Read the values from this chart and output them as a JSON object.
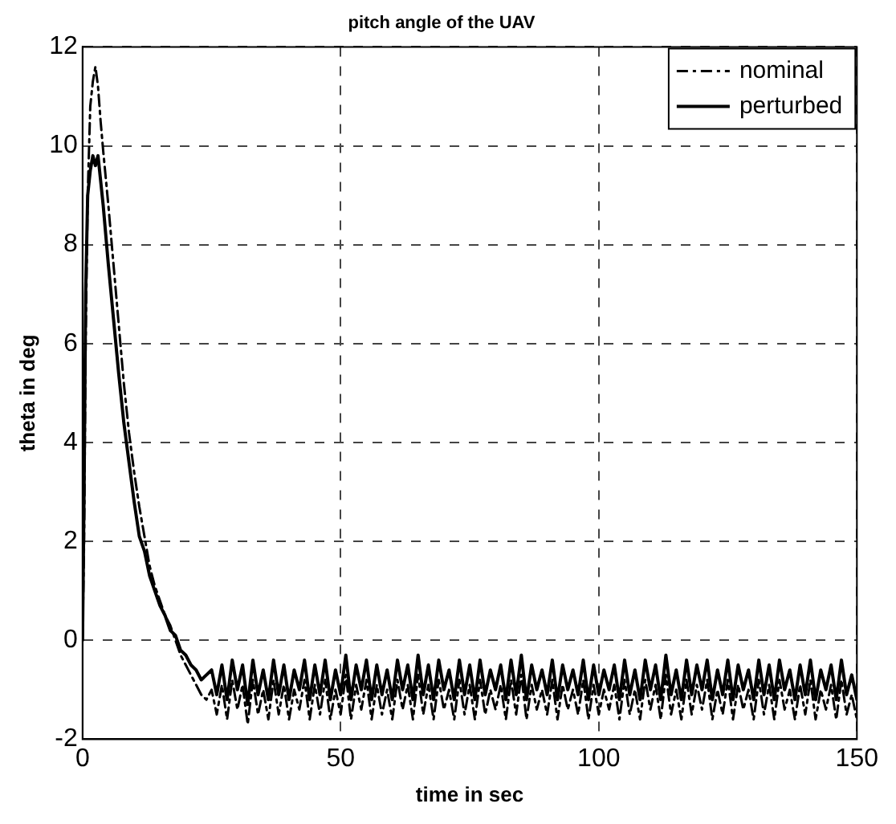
{
  "chart_data": {
    "type": "line",
    "title": "pitch angle of the UAV",
    "xlabel": "time in sec",
    "ylabel": "theta in deg",
    "x": [
      0,
      0.3,
      0.6,
      1,
      1.5,
      2,
      2.5,
      3,
      3.5,
      4,
      5,
      6,
      7,
      8,
      9,
      10,
      11,
      12,
      13,
      14,
      15,
      16,
      17,
      18,
      19,
      20,
      21,
      22,
      23,
      24,
      25,
      26,
      27,
      28,
      29,
      30,
      31,
      32,
      33,
      34,
      35,
      36,
      37,
      38,
      39,
      40,
      41,
      42,
      43,
      44,
      45,
      46,
      47,
      48,
      49,
      50,
      51,
      52,
      53,
      54,
      55,
      56,
      57,
      58,
      59,
      60,
      61,
      62,
      63,
      64,
      65,
      66,
      67,
      68,
      69,
      70,
      71,
      72,
      73,
      74,
      75,
      76,
      77,
      78,
      79,
      80,
      81,
      82,
      83,
      84,
      85,
      86,
      87,
      88,
      89,
      90,
      91,
      92,
      93,
      94,
      95,
      96,
      97,
      98,
      99,
      100,
      101,
      102,
      103,
      104,
      105,
      106,
      107,
      108,
      109,
      110,
      111,
      112,
      113,
      114,
      115,
      116,
      117,
      118,
      119,
      120,
      121,
      122,
      123,
      124,
      125,
      126,
      127,
      128,
      129,
      130,
      131,
      132,
      133,
      134,
      135,
      136,
      137,
      138,
      139,
      140,
      141,
      142,
      143,
      144,
      145,
      146,
      147,
      148,
      149,
      150
    ],
    "series": [
      {
        "name": "nominal",
        "color": "#000000",
        "line_style": "dashed",
        "values": [
          0,
          2,
          6,
          9,
          10.8,
          11.3,
          11.6,
          11.2,
          10.5,
          9.9,
          8.8,
          7.6,
          6.4,
          5.2,
          4.2,
          3.4,
          2.7,
          2.1,
          1.5,
          1.1,
          0.8,
          0.5,
          0.3,
          0,
          -0.3,
          -0.5,
          -0.7,
          -0.9,
          -1.1,
          -1.2,
          -1,
          -1.5,
          -0.9,
          -1.6,
          -0.8,
          -1.4,
          -0.9,
          -1.7,
          -0.8,
          -1.5,
          -1,
          -1.6,
          -0.8,
          -1.5,
          -0.9,
          -1.6,
          -1,
          -1.4,
          -0.8,
          -1.6,
          -0.9,
          -1.5,
          -0.8,
          -1.6,
          -1,
          -1.5,
          -0.7,
          -1.6,
          -0.9,
          -1.4,
          -0.8,
          -1.6,
          -0.9,
          -1.5,
          -1,
          -1.6,
          -0.8,
          -1.4,
          -0.9,
          -1.6,
          -0.7,
          -1.5,
          -0.9,
          -1.6,
          -0.8,
          -1.4,
          -1,
          -1.6,
          -0.8,
          -1.5,
          -0.9,
          -1.6,
          -0.8,
          -1.5,
          -1,
          -1.4,
          -0.9,
          -1.6,
          -0.8,
          -1.5,
          -0.7,
          -1.6,
          -0.9,
          -1.4,
          -1,
          -1.5,
          -0.8,
          -1.6,
          -0.9,
          -1.4,
          -1,
          -1.5,
          -0.8,
          -1.6,
          -0.9,
          -1.5,
          -1,
          -1.4,
          -0.9,
          -1.6,
          -0.8,
          -1.5,
          -1,
          -1.6,
          -0.8,
          -1.4,
          -0.9,
          -1.6,
          -0.7,
          -1.5,
          -1,
          -1.6,
          -0.8,
          -1.5,
          -0.9,
          -1.4,
          -0.8,
          -1.6,
          -1,
          -1.5,
          -0.8,
          -1.6,
          -0.9,
          -1.4,
          -1,
          -1.6,
          -0.8,
          -1.5,
          -0.9,
          -1.6,
          -0.8,
          -1.4,
          -1,
          -1.6,
          -0.9,
          -1.5,
          -0.8,
          -1.6,
          -1,
          -1.4,
          -0.9,
          -1.6,
          -0.8,
          -1.5,
          -1.1,
          -1.6
        ]
      },
      {
        "name": "perturbed",
        "color": "#000000",
        "line_style": "solid",
        "values": [
          0,
          3,
          7,
          9,
          9.5,
          9.8,
          9.6,
          9.8,
          9.3,
          8.8,
          7.6,
          6.5,
          5.4,
          4.4,
          3.6,
          2.8,
          2.1,
          1.8,
          1.3,
          1,
          0.7,
          0.5,
          0.2,
          0.1,
          -0.2,
          -0.3,
          -0.5,
          -0.6,
          -0.8,
          -0.7,
          -0.6,
          -1.1,
          -0.5,
          -1.2,
          -0.4,
          -1,
          -0.5,
          -1.3,
          -0.4,
          -1.1,
          -0.6,
          -1.2,
          -0.4,
          -1.1,
          -0.5,
          -1.2,
          -0.6,
          -1,
          -0.4,
          -1.2,
          -0.5,
          -1.1,
          -0.4,
          -1.2,
          -0.6,
          -1.1,
          -0.3,
          -1.2,
          -0.5,
          -1,
          -0.4,
          -1.2,
          -0.5,
          -1.1,
          -0.6,
          -1.2,
          -0.4,
          -1,
          -0.5,
          -1.2,
          -0.3,
          -1.1,
          -0.5,
          -1.2,
          -0.4,
          -1,
          -0.6,
          -1.2,
          -0.4,
          -1.1,
          -0.5,
          -1.2,
          -0.4,
          -1.1,
          -0.6,
          -1,
          -0.5,
          -1.2,
          -0.4,
          -1.1,
          -0.3,
          -1.2,
          -0.5,
          -1,
          -0.6,
          -1.1,
          -0.4,
          -1.2,
          -0.5,
          -1,
          -0.6,
          -1.1,
          -0.4,
          -1.2,
          -0.5,
          -1.1,
          -0.6,
          -1,
          -0.5,
          -1.2,
          -0.4,
          -1.1,
          -0.6,
          -1.2,
          -0.4,
          -1,
          -0.5,
          -1.2,
          -0.3,
          -1.1,
          -0.6,
          -1.2,
          -0.4,
          -1.1,
          -0.5,
          -1,
          -0.4,
          -1.2,
          -0.6,
          -1.1,
          -0.4,
          -1.2,
          -0.5,
          -1,
          -0.6,
          -1.2,
          -0.4,
          -1.1,
          -0.5,
          -1.2,
          -0.4,
          -1,
          -0.6,
          -1.2,
          -0.5,
          -1.1,
          -0.4,
          -1.2,
          -0.6,
          -1,
          -0.5,
          -1.2,
          -0.4,
          -1.1,
          -0.7,
          -1.2
        ]
      }
    ],
    "xlim": [
      0,
      150
    ],
    "xticks": [
      0,
      50,
      100,
      150
    ],
    "ylim": [
      -2,
      12
    ],
    "yticks": [
      -2,
      0,
      2,
      4,
      6,
      8,
      10,
      12
    ],
    "grid": true,
    "legend": "top right",
    "marker": "none"
  }
}
